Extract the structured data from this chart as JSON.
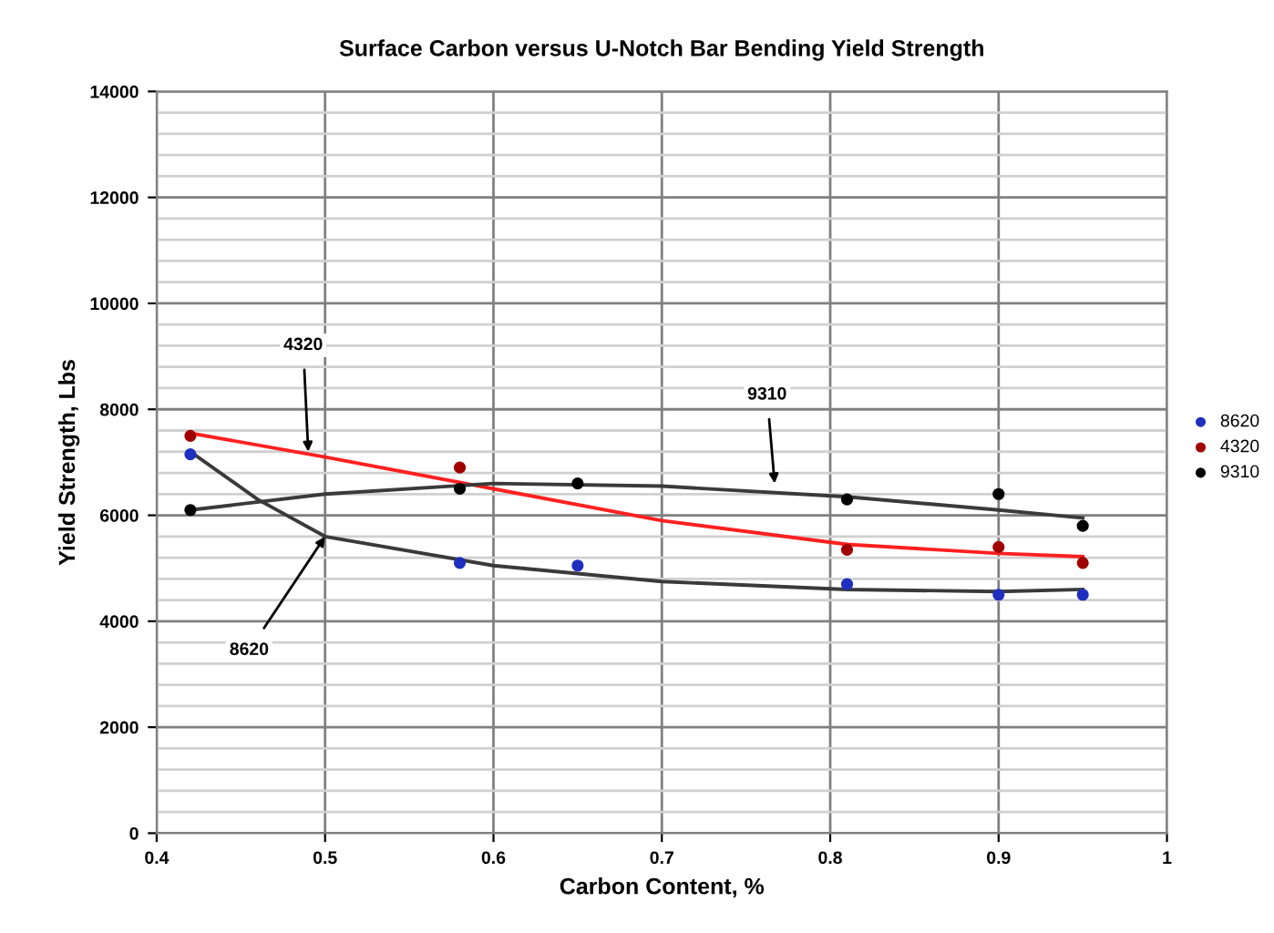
{
  "chart_data": {
    "type": "scatter",
    "title": "Surface Carbon versus U-Notch Bar Bending Yield Strength",
    "xlabel": "Carbon Content, %",
    "ylabel": "Yield Strength, Lbs",
    "xlim": [
      0.4,
      1
    ],
    "xticks": [
      0.4,
      0.5,
      0.6,
      0.7,
      0.8,
      0.9,
      1
    ],
    "ylim": [
      0,
      14000
    ],
    "yticks": [
      0,
      2000,
      4000,
      6000,
      8000,
      10000,
      12000,
      14000
    ],
    "grid": true,
    "legend": "right",
    "marker": "circle",
    "series": [
      {
        "name": "8620",
        "color": "#1f2fbf",
        "x": [
          0.42,
          0.58,
          0.65,
          0.81,
          0.9,
          0.95
        ],
        "values": [
          7150,
          5100,
          5050,
          4700,
          4500,
          4500
        ]
      },
      {
        "name": "4320",
        "color": "#a00000",
        "x": [
          0.42,
          0.58,
          0.81,
          0.9,
          0.95
        ],
        "values": [
          7500,
          6900,
          5350,
          5400,
          5100
        ]
      },
      {
        "name": "9310",
        "color": "#000000",
        "x": [
          0.42,
          0.58,
          0.65,
          0.81,
          0.9,
          0.95
        ],
        "values": [
          6100,
          6500,
          6600,
          6300,
          6400,
          5800
        ]
      },
      {
        "type": "line",
        "color": "#3a3a3a",
        "marker": "none",
        "x": [
          0.42,
          0.46,
          0.5,
          0.6,
          0.7,
          0.81,
          0.9,
          0.95
        ],
        "values": [
          7200,
          6300,
          5600,
          5050,
          4750,
          4600,
          4560,
          4600
        ]
      },
      {
        "type": "line",
        "color": "#ff2020",
        "marker": "none",
        "x": [
          0.42,
          0.5,
          0.6,
          0.7,
          0.81,
          0.9,
          0.95
        ],
        "values": [
          7550,
          7100,
          6500,
          5900,
          5450,
          5280,
          5220
        ]
      },
      {
        "type": "line",
        "color": "#3a3a3a",
        "marker": "none",
        "x": [
          0.42,
          0.5,
          0.6,
          0.7,
          0.81,
          0.9,
          0.95
        ],
        "values": [
          6100,
          6400,
          6600,
          6550,
          6350,
          6100,
          5950
        ]
      }
    ],
    "annotations": [
      {
        "text": "4320",
        "x": 0.49,
        "y": 7200
      },
      {
        "text": "8620",
        "x": 0.5,
        "y": 5600
      },
      {
        "text": "9310",
        "x": 0.767,
        "y": 6600
      }
    ]
  }
}
